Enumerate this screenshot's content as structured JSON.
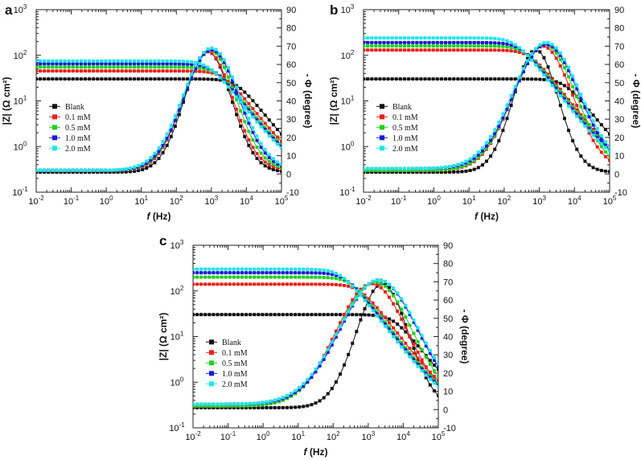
{
  "chart_data": [
    {
      "type": "line",
      "panel": "a",
      "xlabel": "f (Hz)",
      "ylabel_left": "|Z| (Ω cm²)",
      "ylabel_right": "- Φ (degree)",
      "x_log_range": [
        -2,
        5
      ],
      "y_left_log_range": [
        -1,
        3
      ],
      "y_right_range": [
        -10,
        90
      ],
      "legend_position": "center-left",
      "series": [
        {
          "name": "Blank",
          "color": "#111111",
          "rct": 30,
          "cap_pow": 5.2,
          "phase_max": 67,
          "phase_center": 2.9,
          "phase_width": 0.95,
          "phase_base": 1
        },
        {
          "name": "0.1 mM",
          "color": "#e8221b",
          "rct": 45,
          "cap_pow": 5.0,
          "phase_max": 67,
          "phase_center": 2.9,
          "phase_width": 1.0,
          "phase_base": 2
        },
        {
          "name": "0.5 mM",
          "color": "#1fd11f",
          "rct": 55,
          "cap_pow": 4.9,
          "phase_max": 68,
          "phase_center": 2.95,
          "phase_width": 1.05,
          "phase_base": 2
        },
        {
          "name": "1.0 mM",
          "color": "#1a1ad6",
          "rct": 65,
          "cap_pow": 4.85,
          "phase_max": 68,
          "phase_center": 3.0,
          "phase_width": 1.1,
          "phase_base": 2
        },
        {
          "name": "2.0 mM",
          "color": "#22e6e6",
          "rct": 75,
          "cap_pow": 4.8,
          "phase_max": 69,
          "phase_center": 3.0,
          "phase_width": 1.15,
          "phase_base": 2
        }
      ]
    },
    {
      "type": "line",
      "panel": "b",
      "xlabel": "f (Hz)",
      "ylabel_left": "|Z| (Ω cm²)",
      "ylabel_right": "- Φ (degree)",
      "x_log_range": [
        -2,
        5
      ],
      "y_left_log_range": [
        -1,
        3
      ],
      "y_right_range": [
        -10,
        90
      ],
      "legend_position": "center-left",
      "series": [
        {
          "name": "Blank",
          "color": "#111111",
          "rct": 30,
          "cap_pow": 5.2,
          "phase_max": 68,
          "phase_center": 2.9,
          "phase_width": 0.9,
          "phase_base": 1
        },
        {
          "name": "0.1 mM",
          "color": "#e8221b",
          "rct": 130,
          "cap_pow": 4.85,
          "phase_max": 70,
          "phase_center": 3.1,
          "phase_width": 1.2,
          "phase_base": 2
        },
        {
          "name": "0.5 mM",
          "color": "#1fd11f",
          "rct": 160,
          "cap_pow": 4.8,
          "phase_max": 71,
          "phase_center": 3.15,
          "phase_width": 1.25,
          "phase_base": 2
        },
        {
          "name": "1.0 mM",
          "color": "#1a1ad6",
          "rct": 190,
          "cap_pow": 4.75,
          "phase_max": 71,
          "phase_center": 3.2,
          "phase_width": 1.3,
          "phase_base": 3
        },
        {
          "name": "2.0 mM",
          "color": "#22e6e6",
          "rct": 240,
          "cap_pow": 4.7,
          "phase_max": 72,
          "phase_center": 3.2,
          "phase_width": 1.35,
          "phase_base": 3
        }
      ]
    },
    {
      "type": "line",
      "panel": "c",
      "xlabel": "f (Hz)",
      "ylabel_left": "|Z| (Ω cm²)",
      "ylabel_right": "- Φ (degree)",
      "x_log_range": [
        -2,
        5
      ],
      "y_left_log_range": [
        -1,
        3
      ],
      "y_right_range": [
        -10,
        90
      ],
      "legend_position": "center-left",
      "series": [
        {
          "name": "Blank",
          "color": "#111111",
          "rct": 30,
          "cap_pow": 5.2,
          "phase_max": 69,
          "phase_center": 3.4,
          "phase_width": 1.05,
          "phase_base": 1
        },
        {
          "name": "0.1 mM",
          "color": "#e8221b",
          "rct": 140,
          "cap_pow": 4.9,
          "phase_max": 69,
          "phase_center": 3.1,
          "phase_width": 1.45,
          "phase_base": 2
        },
        {
          "name": "0.5 mM",
          "color": "#1fd11f",
          "rct": 200,
          "cap_pow": 4.8,
          "phase_max": 70,
          "phase_center": 3.2,
          "phase_width": 1.5,
          "phase_base": 2
        },
        {
          "name": "1.0 mM",
          "color": "#1a1ad6",
          "rct": 250,
          "cap_pow": 4.75,
          "phase_max": 71,
          "phase_center": 3.3,
          "phase_width": 1.55,
          "phase_base": 3
        },
        {
          "name": "2.0 mM",
          "color": "#22e6e6",
          "rct": 300,
          "cap_pow": 4.7,
          "phase_max": 71,
          "phase_center": 3.3,
          "phase_width": 1.6,
          "phase_base": 3
        }
      ]
    }
  ],
  "axis_text": {
    "x_ticks": [
      "10-2",
      "10-1",
      "100",
      "101",
      "102",
      "103",
      "104",
      "105"
    ],
    "y_left_ticks": [
      "10-1",
      "100",
      "101",
      "102",
      "103"
    ],
    "y_right_ticks": [
      "-10",
      "0",
      "10",
      "20",
      "30",
      "40",
      "50",
      "60",
      "70",
      "80",
      "90"
    ]
  }
}
